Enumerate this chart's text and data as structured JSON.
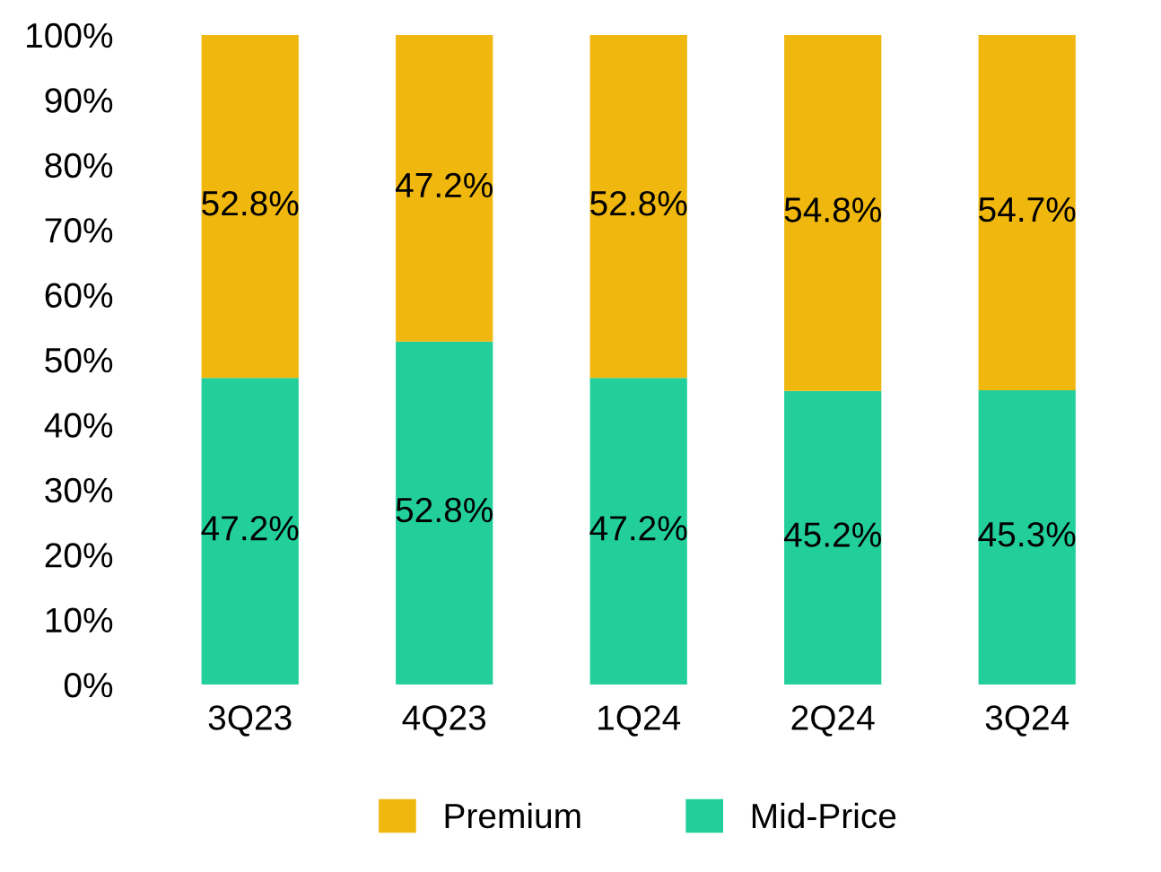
{
  "chart_data": {
    "type": "bar",
    "stacked": true,
    "categories": [
      "3Q23",
      "4Q23",
      "1Q24",
      "2Q24",
      "3Q24"
    ],
    "series": [
      {
        "name": "Mid-Price",
        "color": "#22cf9a",
        "values": [
          47.2,
          52.8,
          47.2,
          45.2,
          45.3
        ],
        "value_labels": [
          "47.2%",
          "52.8%",
          "47.2%",
          "45.2%",
          "45.3%"
        ]
      },
      {
        "name": "Premium",
        "color": "#f0b70f",
        "values": [
          52.8,
          47.2,
          52.8,
          54.8,
          54.7
        ],
        "value_labels": [
          "52.8%",
          "47.2%",
          "52.8%",
          "54.8%",
          "54.7%"
        ]
      }
    ],
    "ylim": [
      0,
      100
    ],
    "yticks": [
      {
        "value": 0,
        "label": "0%"
      },
      {
        "value": 10,
        "label": "10%"
      },
      {
        "value": 20,
        "label": "20%"
      },
      {
        "value": 30,
        "label": "30%"
      },
      {
        "value": 40,
        "label": "40%"
      },
      {
        "value": 50,
        "label": "50%"
      },
      {
        "value": 60,
        "label": "60%"
      },
      {
        "value": 70,
        "label": "70%"
      },
      {
        "value": 80,
        "label": "80%"
      },
      {
        "value": 90,
        "label": "90%"
      },
      {
        "value": 100,
        "label": "100%"
      }
    ],
    "grid": false,
    "legend": "bottom"
  }
}
